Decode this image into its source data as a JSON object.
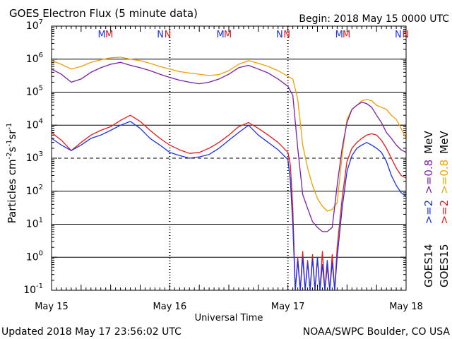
{
  "chart_data": {
    "type": "line",
    "title": "GOES Electron Flux (5 minute data)",
    "begin_label": "Begin: 2018 May 15 0000 UTC",
    "xlabel": "Universal Time",
    "ylabel_main": "Particles cm",
    "ylabel_exp1": "-2",
    "ylabel_mid1": "s",
    "ylabel_exp2": "-1",
    "ylabel_mid2": "sr",
    "ylabel_exp3": "-1",
    "updated_label": "Updated 2018 May 17 23:56:02 UTC",
    "credit_label": "NOAA/SWPC Boulder, CO USA",
    "y_scale": "log",
    "ylim": [
      0.1,
      10000000
    ],
    "xlim": [
      0,
      72
    ],
    "x_unit": "hours since 2018 May 15 0000 UTC",
    "grid": true,
    "dashed_threshold": 1000,
    "x_ticks": [
      {
        "x": 0,
        "label": "May 15"
      },
      {
        "x": 24,
        "label": "May 16"
      },
      {
        "x": 48,
        "label": "May 17"
      },
      {
        "x": 72,
        "label": "May 18"
      }
    ],
    "y_ticks": [
      {
        "value": 0.1,
        "mantissa": "10",
        "exp": "-1"
      },
      {
        "value": 1,
        "mantissa": "10",
        "exp": "0"
      },
      {
        "value": 10,
        "mantissa": "10",
        "exp": "1"
      },
      {
        "value": 100,
        "mantissa": "10",
        "exp": "2"
      },
      {
        "value": 1000,
        "mantissa": "10",
        "exp": "3"
      },
      {
        "value": 10000,
        "mantissa": "10",
        "exp": "4"
      },
      {
        "value": 100000,
        "mantissa": "10",
        "exp": "5"
      },
      {
        "value": 1000000,
        "mantissa": "10",
        "exp": "6"
      },
      {
        "value": 10000000,
        "mantissa": "10",
        "exp": "7"
      }
    ],
    "markers": [
      {
        "x": 10.2,
        "text": "M",
        "color": "#1a33e6"
      },
      {
        "x": 11.7,
        "text": "M",
        "color": "#e61a1a"
      },
      {
        "x": 22.1,
        "text": "N",
        "color": "#1a33e6"
      },
      {
        "x": 23.6,
        "text": "N",
        "color": "#e61a1a"
      },
      {
        "x": 34.3,
        "text": "M",
        "color": "#1a33e6"
      },
      {
        "x": 35.8,
        "text": "M",
        "color": "#e61a1a"
      },
      {
        "x": 46.3,
        "text": "N",
        "color": "#1a33e6"
      },
      {
        "x": 47.8,
        "text": "N",
        "color": "#e61a1a"
      },
      {
        "x": 58.4,
        "text": "M",
        "color": "#1a33e6"
      },
      {
        "x": 59.9,
        "text": "M",
        "color": "#e61a1a"
      },
      {
        "x": 70.4,
        "text": "N",
        "color": "#1a33e6"
      },
      {
        "x": 71.9,
        "text": "N",
        "color": "#e61a1a"
      }
    ],
    "legend": [
      {
        "text": "GOES14",
        "color": "#000000"
      },
      {
        "text": ">=2",
        "color": "#1a33e6"
      },
      {
        "text": ">=0.8",
        "color": "#7a1fa6"
      },
      {
        "text": "MeV",
        "color": "#000000"
      },
      {
        "text": "GOES15",
        "color": "#000000"
      },
      {
        "text": ">=2",
        "color": "#e61a1a"
      },
      {
        "text": ">=0.8",
        "color": "#f0a000"
      },
      {
        "text": "MeV",
        "color": "#000000"
      }
    ],
    "series": [
      {
        "name": "GOES15 >=0.8 MeV",
        "color": "#f0a000",
        "x": [
          0,
          2,
          4,
          6,
          8,
          10,
          12,
          14,
          16,
          18,
          20,
          22,
          24,
          26,
          28,
          30,
          32,
          34,
          36,
          38,
          40,
          42,
          44,
          46,
          48,
          49,
          50,
          51,
          52,
          53,
          54,
          55,
          56,
          57,
          58,
          59,
          60,
          61,
          62,
          63,
          64,
          65,
          66,
          67,
          68,
          69,
          70,
          71,
          72
        ],
        "y": [
          900000,
          700000,
          500000,
          600000,
          800000,
          950000,
          1100000,
          1150000,
          1000000,
          900000,
          750000,
          600000,
          500000,
          420000,
          380000,
          350000,
          320000,
          340000,
          450000,
          700000,
          900000,
          750000,
          600000,
          450000,
          300000,
          250000,
          60000,
          2500,
          500,
          150,
          60,
          35,
          25,
          28,
          45,
          1200,
          15000,
          30000,
          40000,
          55000,
          60000,
          55000,
          40000,
          35000,
          30000,
          20000,
          15000,
          8000,
          4000
        ]
      },
      {
        "name": "GOES14 >=0.8 MeV",
        "color": "#7a1fa6",
        "x": [
          0,
          2,
          4,
          6,
          8,
          10,
          12,
          14,
          16,
          18,
          20,
          22,
          24,
          26,
          28,
          30,
          32,
          34,
          36,
          38,
          40,
          42,
          44,
          46,
          48,
          49,
          50,
          51,
          52,
          53,
          54,
          55,
          56,
          57,
          58,
          59,
          60,
          61,
          62,
          63,
          64,
          65,
          66,
          67,
          68,
          69,
          70,
          71,
          72
        ],
        "y": [
          500000,
          350000,
          200000,
          250000,
          400000,
          550000,
          700000,
          800000,
          650000,
          550000,
          450000,
          350000,
          280000,
          230000,
          200000,
          180000,
          200000,
          250000,
          350000,
          550000,
          650000,
          500000,
          380000,
          250000,
          150000,
          80000,
          2000,
          80,
          30,
          12,
          8,
          6,
          6,
          8,
          150,
          2000,
          12000,
          30000,
          40000,
          50000,
          45000,
          35000,
          20000,
          12000,
          6000,
          4000,
          2500,
          1800,
          1500
        ]
      },
      {
        "name": "GOES15 >=2 MeV",
        "color": "#e61a1a",
        "x": [
          0,
          2,
          4,
          6,
          8,
          10,
          12,
          14,
          16,
          18,
          20,
          22,
          24,
          26,
          28,
          30,
          32,
          34,
          36,
          38,
          40,
          42,
          44,
          46,
          48,
          48.5,
          49,
          49.5,
          50,
          50.5,
          51,
          51.5,
          52,
          52.5,
          53,
          53.5,
          54,
          54.5,
          55,
          55.5,
          56,
          56.5,
          57,
          57.5,
          58,
          59,
          60,
          61,
          62,
          63,
          64,
          65,
          66,
          67,
          68,
          69,
          70,
          71,
          72
        ],
        "y": [
          6000,
          3500,
          1700,
          3000,
          5000,
          7000,
          9000,
          14000,
          20000,
          13000,
          7000,
          4000,
          2500,
          1800,
          1400,
          1500,
          2000,
          3000,
          5000,
          9000,
          12000,
          8000,
          5000,
          3000,
          1500,
          600,
          30,
          0.1,
          1,
          0.1,
          1.5,
          0.1,
          0.8,
          0.1,
          1.2,
          0.1,
          0.9,
          0.1,
          1.5,
          0.1,
          0.5,
          0.1,
          1.2,
          0.1,
          2,
          60,
          800,
          2000,
          3000,
          4000,
          5000,
          5500,
          5000,
          3500,
          2000,
          1000,
          500,
          300,
          250
        ]
      },
      {
        "name": "GOES14 >=2 MeV",
        "color": "#1a33e6",
        "x": [
          0,
          2,
          4,
          6,
          8,
          10,
          12,
          14,
          16,
          18,
          20,
          22,
          24,
          26,
          28,
          30,
          32,
          34,
          36,
          38,
          40,
          42,
          44,
          46,
          48,
          48.5,
          49,
          49.5,
          50,
          50.5,
          51,
          51.5,
          52,
          52.5,
          53,
          53.5,
          54,
          54.5,
          55,
          55.5,
          56,
          56.5,
          57,
          57.5,
          58,
          59,
          60,
          61,
          62,
          63,
          64,
          65,
          66,
          67,
          68,
          69,
          70,
          71,
          72
        ],
        "y": [
          4000,
          2500,
          1700,
          2500,
          4000,
          5000,
          7000,
          10000,
          13000,
          8000,
          4000,
          2500,
          1500,
          1200,
          1000,
          1100,
          1300,
          2000,
          3500,
          6000,
          10000,
          5000,
          3000,
          1800,
          900,
          200,
          10,
          0.1,
          0.8,
          0.1,
          1,
          0.1,
          0.7,
          0.1,
          0.9,
          0.1,
          1,
          0.1,
          0.6,
          0.1,
          0.8,
          0.1,
          0.7,
          0.1,
          1,
          30,
          400,
          1200,
          2000,
          2500,
          3000,
          2500,
          2000,
          1500,
          800,
          300,
          150,
          90,
          70
        ]
      }
    ]
  }
}
